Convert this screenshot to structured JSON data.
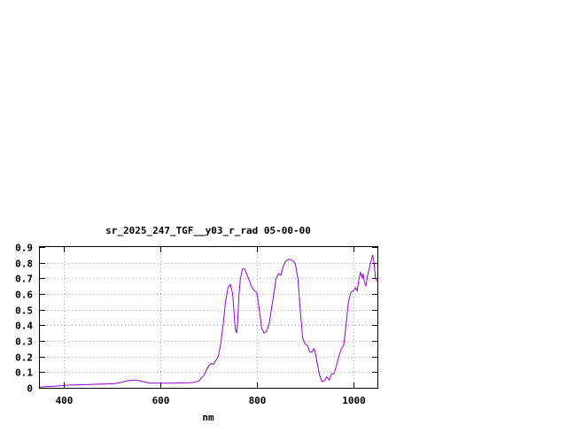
{
  "chart_data": {
    "type": "line",
    "title": "sr_2025_247_TGF__y03_r_rad 05-00-00",
    "xlabel": "nm",
    "ylabel": "",
    "xlim": [
      350,
      1050
    ],
    "ylim": [
      0,
      0.9
    ],
    "x_ticks": [
      400,
      600,
      800,
      1000
    ],
    "x_tick_labels": [
      "400",
      "600",
      "800",
      "1000"
    ],
    "y_ticks": [
      0,
      0.1,
      0.2,
      0.3,
      0.4,
      0.5,
      0.6,
      0.7,
      0.8,
      0.9
    ],
    "y_tick_labels": [
      "0",
      "0.1",
      "0.2",
      "0.3",
      "0.4",
      "0.5",
      "0.6",
      "0.7",
      "0.8",
      "0.9"
    ],
    "grid": true,
    "legend": "none",
    "colors": {
      "series": "#9400d3",
      "grid": "#a0a0a0",
      "axis": "#000000"
    },
    "series": [
      {
        "x": [
          350,
          360,
          370,
          380,
          390,
          400,
          420,
          440,
          460,
          480,
          500,
          510,
          520,
          530,
          540,
          550,
          560,
          570,
          580,
          600,
          620,
          640,
          660,
          670,
          680,
          690,
          700,
          705,
          710,
          720,
          725,
          730,
          735,
          740,
          745,
          750,
          755,
          758,
          760,
          763,
          766,
          770,
          775,
          780,
          785,
          790,
          795,
          800,
          805,
          810,
          815,
          820,
          825,
          830,
          835,
          840,
          845,
          850,
          855,
          860,
          865,
          870,
          875,
          880,
          885,
          890,
          895,
          900,
          905,
          910,
          915,
          918,
          920,
          925,
          930,
          935,
          940,
          945,
          950,
          955,
          960,
          965,
          970,
          975,
          980,
          985,
          990,
          995,
          1000,
          1005,
          1008,
          1010,
          1012,
          1015,
          1018,
          1020,
          1023,
          1026,
          1030,
          1033,
          1036,
          1040,
          1043,
          1046,
          1050
        ],
        "y": [
          0.005,
          0.006,
          0.008,
          0.01,
          0.013,
          0.016,
          0.018,
          0.02,
          0.022,
          0.024,
          0.026,
          0.03,
          0.035,
          0.045,
          0.048,
          0.05,
          0.042,
          0.035,
          0.03,
          0.03,
          0.03,
          0.031,
          0.032,
          0.035,
          0.045,
          0.08,
          0.14,
          0.155,
          0.15,
          0.2,
          0.28,
          0.4,
          0.55,
          0.64,
          0.66,
          0.6,
          0.38,
          0.35,
          0.42,
          0.6,
          0.7,
          0.76,
          0.76,
          0.72,
          0.68,
          0.64,
          0.62,
          0.61,
          0.5,
          0.38,
          0.35,
          0.36,
          0.4,
          0.5,
          0.6,
          0.7,
          0.73,
          0.72,
          0.78,
          0.81,
          0.82,
          0.82,
          0.81,
          0.79,
          0.7,
          0.5,
          0.32,
          0.28,
          0.27,
          0.23,
          0.23,
          0.25,
          0.24,
          0.16,
          0.08,
          0.04,
          0.045,
          0.07,
          0.05,
          0.09,
          0.09,
          0.14,
          0.2,
          0.25,
          0.27,
          0.4,
          0.55,
          0.61,
          0.62,
          0.64,
          0.62,
          0.66,
          0.7,
          0.74,
          0.7,
          0.73,
          0.68,
          0.65,
          0.72,
          0.76,
          0.8,
          0.85,
          0.8,
          0.7,
          0.68
        ]
      }
    ]
  }
}
